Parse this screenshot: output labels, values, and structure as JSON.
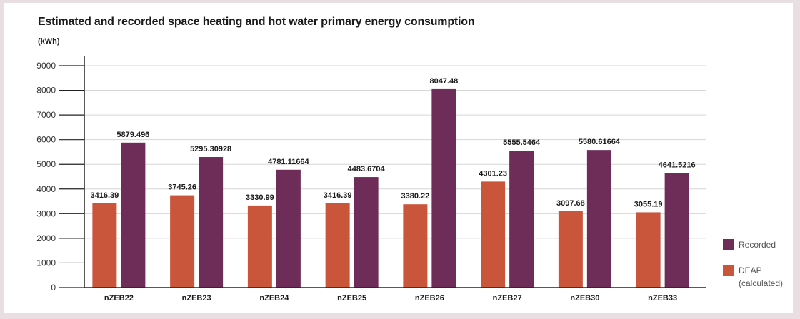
{
  "chart_data": {
    "type": "bar",
    "title": "Estimated and recorded space heating and hot water primary energy consumption",
    "ylabel": "(kWh)",
    "xlabel": "",
    "ylim": [
      0,
      9000
    ],
    "yticks": [
      0,
      1000,
      2000,
      3000,
      4000,
      5000,
      6000,
      7000,
      8000,
      9000
    ],
    "grid": true,
    "legend_placement": "right",
    "categories": [
      "nZEB22",
      "nZEB23",
      "nZEB24",
      "nZEB25",
      "nZEB26",
      "nZEB27",
      "nZEB30",
      "nZEB33"
    ],
    "series": [
      {
        "name": "DEAP (calculated)",
        "legend_lines": [
          "DEAP",
          "(calculated)"
        ],
        "color": "#c9553a",
        "values": [
          3416.39,
          3745.26,
          3330.99,
          3416.39,
          3380.22,
          4301.23,
          3097.68,
          3055.19
        ],
        "labels": [
          "3416.39",
          "3745.26",
          "3330.99",
          "3416.39",
          "3380.22",
          "4301.23",
          "3097.68",
          "3055.19"
        ]
      },
      {
        "name": "Recorded",
        "legend_lines": [
          "Recorded"
        ],
        "color": "#6e2d59",
        "values": [
          5879.496,
          5295.30928,
          4781.11664,
          4483.6704,
          8047.48,
          5555.5464,
          5580.61664,
          4641.5216
        ],
        "labels": [
          "5879.496",
          "5295.30928",
          "4781.11664",
          "4483.6704",
          "8047.48",
          "5555.5464",
          "5580.61664",
          "4641.5216"
        ]
      }
    ]
  }
}
